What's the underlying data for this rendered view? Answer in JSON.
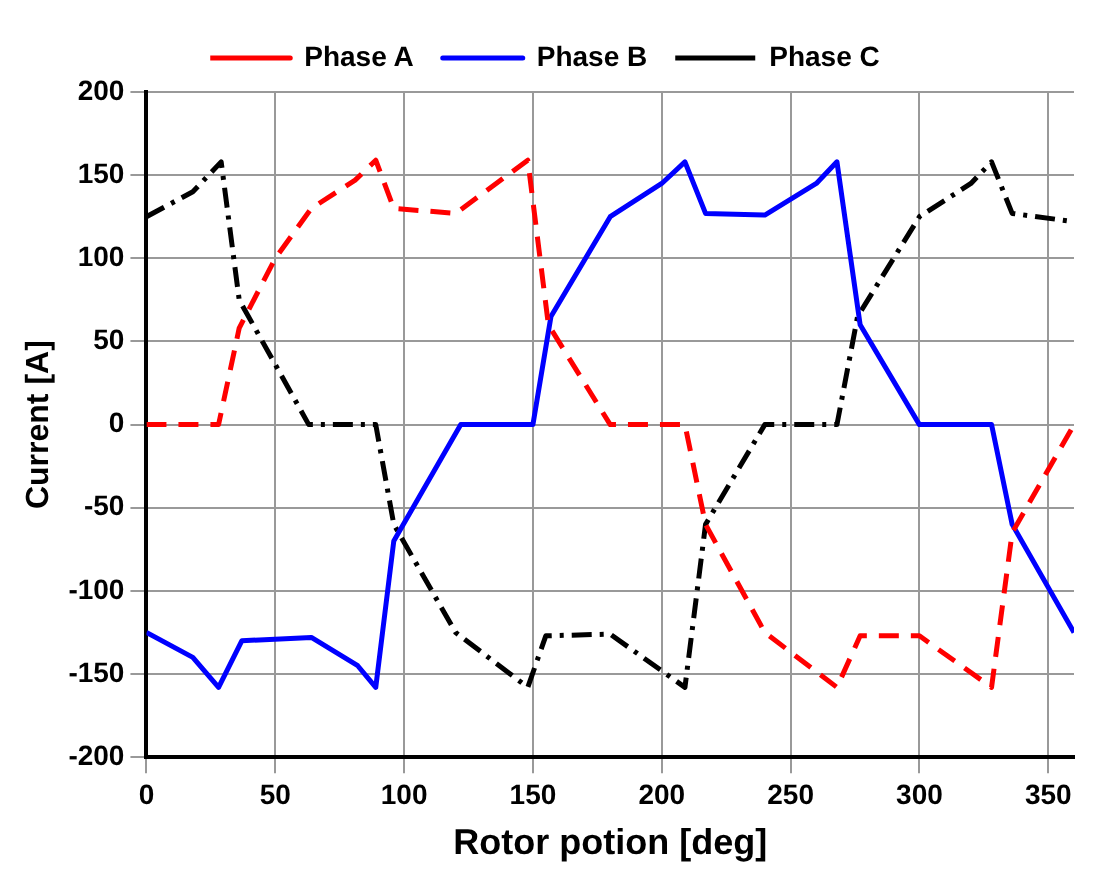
{
  "chart_data": {
    "type": "line",
    "xlabel": "Rotor potion [deg]",
    "ylabel": "Current [A]",
    "xlim": [
      0,
      360
    ],
    "xticks": [
      0,
      50,
      100,
      150,
      200,
      250,
      300,
      350
    ],
    "ylim": [
      -200,
      200
    ],
    "yticks": [
      -200,
      -150,
      -100,
      -50,
      0,
      50,
      100,
      150,
      200
    ],
    "grid": true,
    "legend": "top",
    "marker": "none",
    "series": [
      {
        "name": "Phase A",
        "color": "#ff0000",
        "line_style": "dashed",
        "x": [
          0,
          28,
          36,
          50,
          64,
          81,
          89,
          96,
          120,
          148,
          156,
          180,
          209,
          217,
          240,
          268,
          277,
          300,
          328,
          336,
          360
        ],
        "values": [
          0,
          0,
          58,
          100,
          130,
          147,
          159,
          130,
          127,
          159,
          60,
          0,
          0,
          -60,
          -125,
          -158,
          -127,
          -127,
          -158,
          -65,
          0
        ]
      },
      {
        "name": "Phase B",
        "color": "#0000ff",
        "line_style": "solid",
        "x": [
          0,
          18,
          28,
          37,
          64,
          82,
          89,
          96,
          122,
          150,
          157,
          180,
          200,
          209,
          217,
          240,
          260,
          268,
          277,
          300,
          328,
          336,
          360
        ],
        "values": [
          -125,
          -140,
          -158,
          -130,
          -128,
          -145,
          -158,
          -70,
          0,
          0,
          65,
          125,
          145,
          158,
          127,
          126,
          145,
          158,
          60,
          0,
          0,
          -60,
          -125
        ]
      },
      {
        "name": "Phase C",
        "color": "#000000",
        "line_style": "dashdot",
        "x": [
          0,
          18,
          29,
          36,
          63,
          89,
          96,
          120,
          148,
          155,
          180,
          209,
          217,
          240,
          268,
          276,
          300,
          320,
          328,
          336,
          360
        ],
        "values": [
          125,
          140,
          158,
          75,
          0,
          0,
          -60,
          -125,
          -158,
          -127,
          -126,
          -158,
          -60,
          0,
          0,
          65,
          125,
          145,
          158,
          127,
          122
        ]
      }
    ]
  }
}
